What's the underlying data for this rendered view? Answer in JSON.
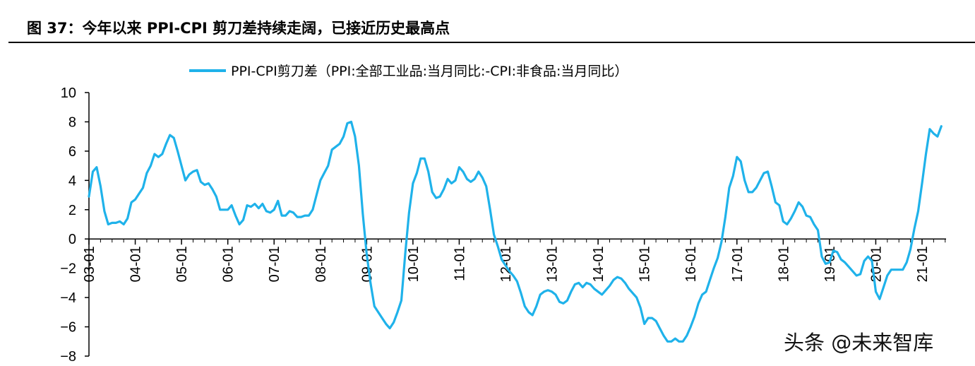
{
  "figure": {
    "title": "图 37：今年以来 PPI-CPI 剪刀差持续走阔，已接近历史最高点"
  },
  "watermark": "头条 @未来智库",
  "colors": {
    "line": "#1fb2ea",
    "axis": "#000000",
    "background": "#ffffff"
  },
  "chart_data": {
    "type": "line",
    "legend": "top-center",
    "grid": false,
    "series": [
      {
        "name": "PPI-CPI剪刀差（PPI:全部工业品:当月同比:-CPI:非食品:当月同比）",
        "start": "2003-01",
        "frequency": "monthly",
        "values": [
          2.9,
          4.6,
          4.9,
          3.6,
          1.9,
          1.0,
          1.1,
          1.1,
          1.2,
          1.0,
          1.4,
          2.5,
          2.7,
          3.1,
          3.5,
          4.5,
          5.0,
          5.8,
          5.6,
          5.8,
          6.5,
          7.1,
          6.9,
          6.0,
          5.0,
          4.0,
          4.4,
          4.6,
          4.7,
          3.9,
          3.7,
          3.8,
          3.4,
          2.9,
          2.0,
          2.0,
          2.0,
          2.3,
          1.6,
          1.0,
          1.3,
          2.3,
          2.2,
          2.4,
          2.1,
          2.4,
          1.9,
          1.8,
          2.0,
          2.6,
          1.6,
          1.6,
          1.9,
          1.8,
          1.5,
          1.5,
          1.6,
          1.6,
          2.0,
          3.0,
          4.0,
          4.5,
          5.0,
          6.1,
          6.3,
          6.5,
          7.0,
          7.9,
          8.0,
          7.0,
          5.0,
          1.7,
          -1.0,
          -3.0,
          -4.6,
          -5.0,
          -5.4,
          -5.8,
          -6.1,
          -5.7,
          -5.0,
          -4.2,
          -1.0,
          1.8,
          3.8,
          4.5,
          5.5,
          5.5,
          4.6,
          3.2,
          2.8,
          2.9,
          3.4,
          4.1,
          3.8,
          4.0,
          4.9,
          4.6,
          4.1,
          3.9,
          4.1,
          4.6,
          4.2,
          3.6,
          2.0,
          0.3,
          -0.5,
          -1.4,
          -1.8,
          -2.2,
          -2.5,
          -2.9,
          -3.7,
          -4.6,
          -5.0,
          -5.2,
          -4.6,
          -3.8,
          -3.6,
          -3.5,
          -3.6,
          -3.8,
          -4.3,
          -4.4,
          -4.2,
          -3.6,
          -3.1,
          -3.0,
          -3.3,
          -3.0,
          -3.1,
          -3.4,
          -3.6,
          -3.8,
          -3.5,
          -3.2,
          -2.8,
          -2.6,
          -2.7,
          -3.0,
          -3.4,
          -3.7,
          -4.0,
          -4.7,
          -5.8,
          -5.4,
          -5.4,
          -5.6,
          -6.1,
          -6.6,
          -7.0,
          -7.0,
          -6.8,
          -7.0,
          -7.0,
          -6.6,
          -6.0,
          -5.3,
          -4.4,
          -3.8,
          -3.6,
          -2.8,
          -2.0,
          -1.3,
          -0.2,
          1.5,
          3.5,
          4.3,
          5.6,
          5.3,
          4.0,
          3.2,
          3.2,
          3.5,
          4.0,
          4.5,
          4.6,
          3.6,
          2.5,
          2.3,
          1.2,
          1.0,
          1.4,
          1.9,
          2.5,
          2.2,
          1.6,
          1.5,
          1.0,
          0.6,
          -1.2,
          -1.7,
          -1.6,
          -0.8,
          -0.9,
          -1.4,
          -1.6,
          -1.9,
          -2.2,
          -2.5,
          -2.4,
          -1.5,
          -1.2,
          -1.5,
          -3.6,
          -4.1,
          -3.3,
          -2.5,
          -2.1,
          -2.1,
          -2.1,
          -2.1,
          -1.6,
          -0.7,
          0.7,
          1.9,
          3.8,
          5.8,
          7.5,
          7.2,
          7.0,
          7.7
        ]
      }
    ],
    "y_axis": {
      "min": -8,
      "max": 10,
      "step": 2,
      "tick_labels": [
        "10",
        "8",
        "6",
        "4",
        "2",
        "0",
        "−2",
        "−4",
        "−6",
        "−8"
      ]
    },
    "x_axis": {
      "tick_labels": [
        "03-01",
        "04-01",
        "05-01",
        "06-01",
        "07-01",
        "08-01",
        "09-01",
        "10-01",
        "11-01",
        "12-01",
        "13-01",
        "14-01",
        "15-01",
        "16-01",
        "17-01",
        "18-01",
        "19-01",
        "20-01",
        "21-01"
      ],
      "tick_months_from_start": [
        0,
        12,
        24,
        36,
        48,
        60,
        72,
        84,
        96,
        108,
        120,
        132,
        144,
        156,
        168,
        180,
        192,
        204,
        216
      ]
    }
  }
}
